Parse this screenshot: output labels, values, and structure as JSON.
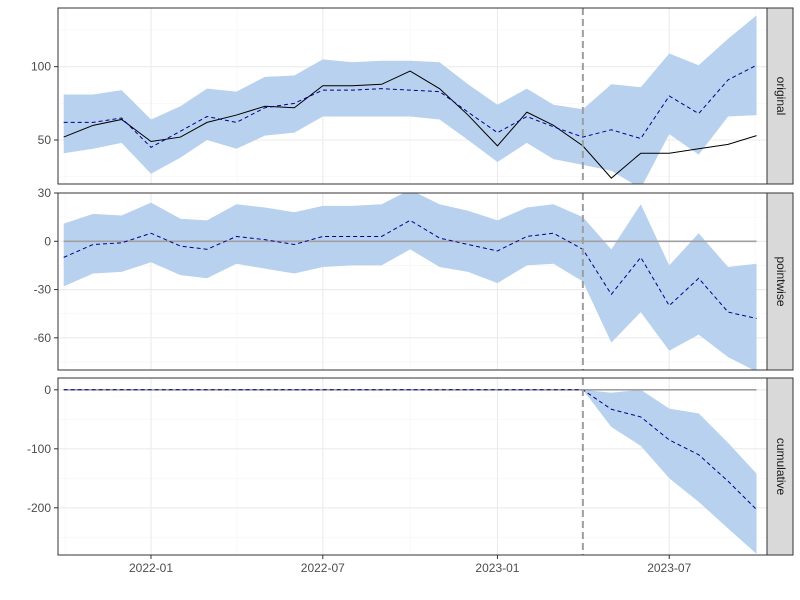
{
  "chart_data": {
    "type": "line",
    "x_ticks": [
      "2022-01",
      "2022-07",
      "2023-01",
      "2023-07"
    ],
    "x_range": [
      "2021-09-25",
      "2023-10-12"
    ],
    "intervention_date": "2023-04-01",
    "dates": [
      "2021-10-01",
      "2021-11-01",
      "2021-12-01",
      "2022-01-01",
      "2022-02-01",
      "2022-03-01",
      "2022-04-01",
      "2022-05-01",
      "2022-06-01",
      "2022-07-01",
      "2022-08-01",
      "2022-09-01",
      "2022-10-01",
      "2022-11-01",
      "2022-12-01",
      "2023-01-01",
      "2023-02-01",
      "2023-03-01",
      "2023-04-01",
      "2023-05-01",
      "2023-06-01",
      "2023-07-01",
      "2023-08-01",
      "2023-09-01",
      "2023-10-01"
    ],
    "panels": [
      {
        "strip": "original",
        "ylim": [
          20,
          140
        ],
        "yticks": [
          50,
          100
        ],
        "series": [
          {
            "values": [
              52,
              60,
              64,
              49,
              52,
              62,
              67,
              73,
              72,
              87,
              87,
              88,
              97,
              85,
              67,
              46,
              69,
              60,
              46,
              24,
              41,
              41,
              44,
              47,
              53
            ]
          },
          {
            "values": [
              62,
              62,
              65,
              45,
              56,
              66,
              62,
              72,
              75,
              84,
              84,
              85,
              84,
              83,
              69,
              55,
              66,
              59,
              52,
              57,
              51,
              80,
              68,
              91,
              101
            ]
          }
        ],
        "band_upper": [
          81,
          81,
          84,
          64,
          73,
          85,
          83,
          93,
          94,
          105,
          103,
          104,
          104,
          103,
          88,
          74,
          85,
          74,
          71,
          88,
          86,
          109,
          101,
          119,
          135
        ],
        "band_lower": [
          41,
          44,
          48,
          27,
          38,
          50,
          44,
          53,
          55,
          66,
          66,
          66,
          66,
          64,
          50,
          35,
          48,
          37,
          33,
          29,
          17,
          54,
          40,
          66,
          67
        ],
        "hline": null
      },
      {
        "strip": "pointwise",
        "ylim": [
          -80,
          30
        ],
        "yticks": [
          30,
          0,
          -30,
          -60
        ],
        "series": [
          {
            "values": [
              -10,
              -2,
              -1,
              5,
              -3,
              -5,
              3,
              1,
              -2,
              3,
              3,
              3,
              13,
              2,
              -2,
              -6,
              3,
              5,
              -5,
              -33,
              -10,
              -40,
              -23,
              -44,
              -48
            ]
          }
        ],
        "band_upper": [
          11,
          17,
          16,
          24,
          14,
          13,
          23,
          21,
          18,
          22,
          22,
          23,
          32,
          23,
          19,
          13,
          21,
          23,
          15,
          -5,
          23,
          -15,
          5,
          -16,
          -14
        ],
        "band_lower": [
          -28,
          -20,
          -19,
          -13,
          -21,
          -23,
          -14,
          -17,
          -20,
          -16,
          -15,
          -15,
          -5,
          -16,
          -19,
          -26,
          -15,
          -14,
          -25,
          -63,
          -44,
          -68,
          -58,
          -72,
          -81
        ]
      },
      {
        "strip": "cumulative",
        "ylim": [
          -280,
          20
        ],
        "yticks": [
          0,
          -100,
          -200
        ],
        "series": [
          {
            "values": [
              0,
              0,
              0,
              0,
              0,
              0,
              0,
              0,
              0,
              0,
              0,
              0,
              0,
              0,
              0,
              0,
              0,
              0,
              0,
              -33,
              -46,
              -85,
              -110,
              -155,
              -203
            ]
          }
        ],
        "band_upper": [
          0,
          0,
          0,
          0,
          0,
          0,
          0,
          0,
          0,
          0,
          0,
          0,
          0,
          0,
          0,
          0,
          0,
          0,
          0,
          -5,
          0,
          -32,
          -40,
          -90,
          -142
        ],
        "band_lower": [
          0,
          0,
          0,
          0,
          0,
          0,
          0,
          0,
          0,
          0,
          0,
          0,
          0,
          0,
          0,
          0,
          0,
          0,
          0,
          -63,
          -95,
          -150,
          -190,
          -235,
          -278
        ]
      }
    ],
    "grid": true,
    "colors": {
      "band": "#b8d1ee",
      "actual": "#000000",
      "predicted": "#00008b",
      "zero_line": "#a0a0a0",
      "intervention_line": "#9e9e9e",
      "strip_bg": "#d9d9d9",
      "grid_major": "#ebebeb",
      "grid_minor": "#f5f5f5"
    }
  }
}
